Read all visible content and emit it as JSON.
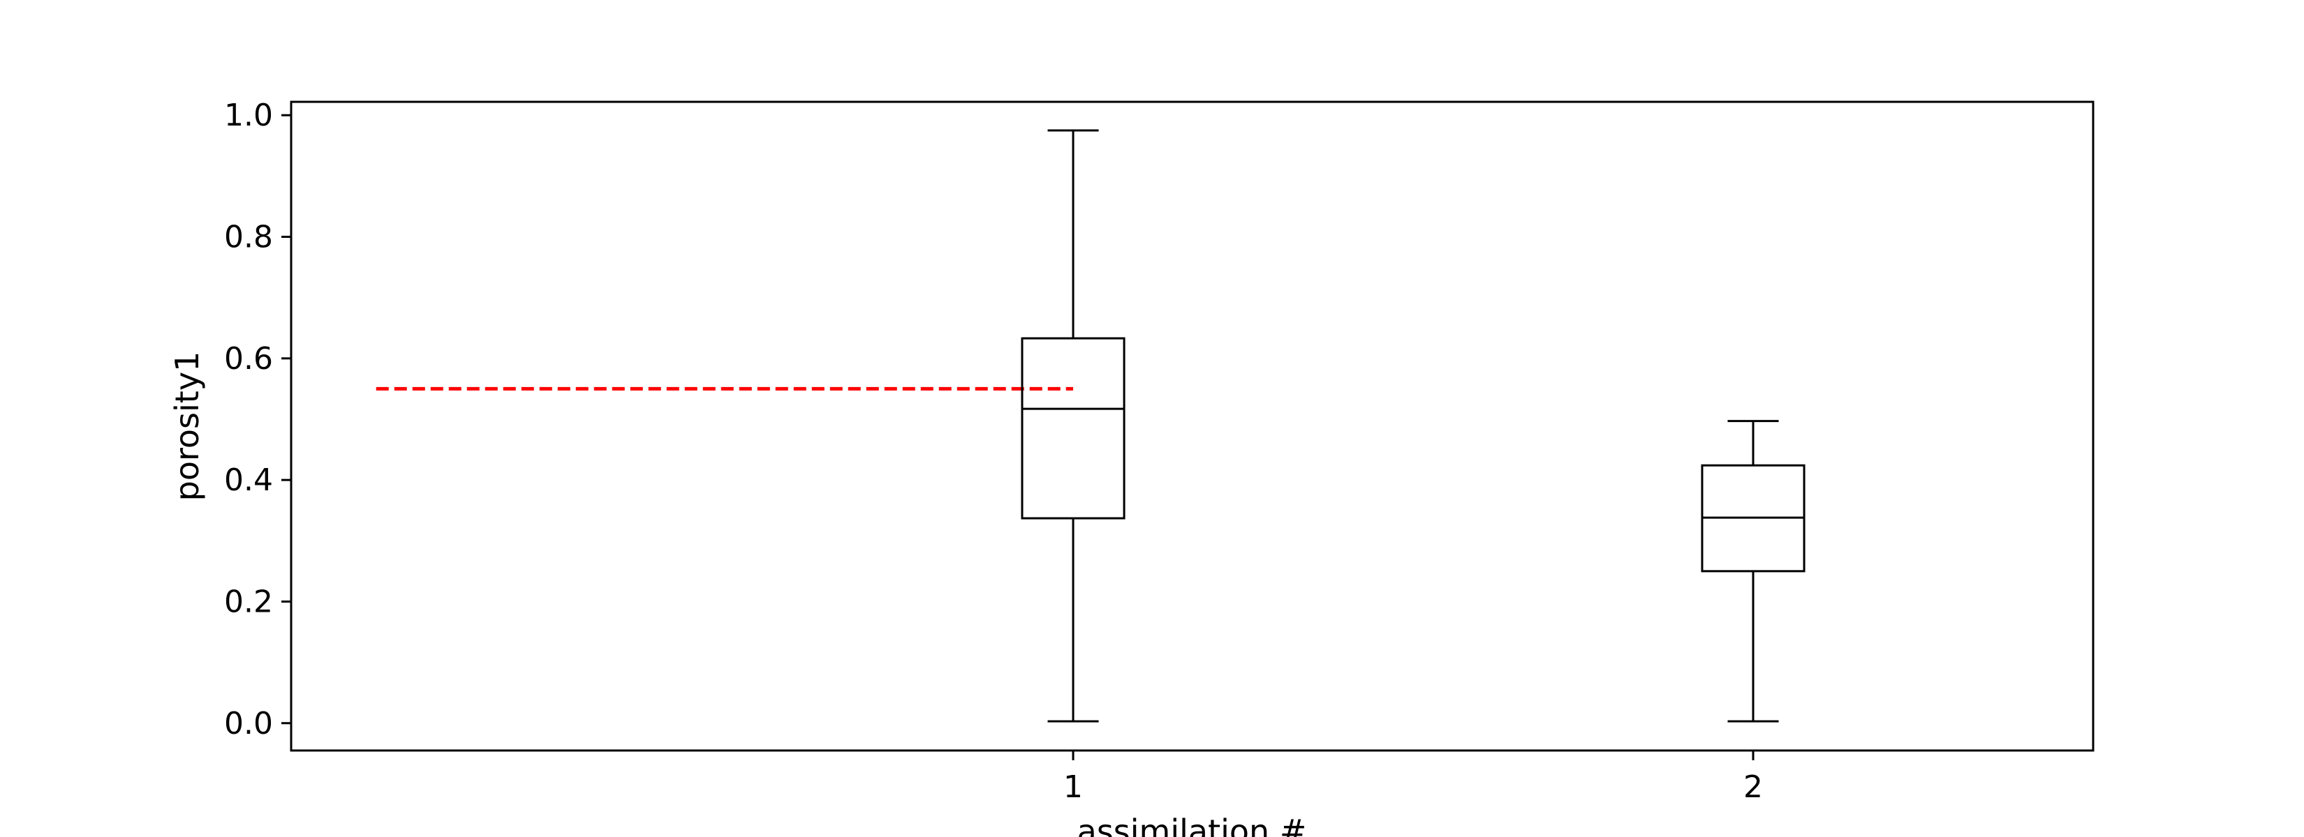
{
  "chart_data": {
    "type": "box",
    "xlabel": "assimilation #",
    "ylabel": "porosity1",
    "ylim": [
      -0.045,
      1.022
    ],
    "xlim": [
      -0.15,
      2.5
    ],
    "yticks": [
      "0.0",
      "0.2",
      "0.4",
      "0.6",
      "0.8",
      "1.0"
    ],
    "ytick_values": [
      0.0,
      0.2,
      0.4,
      0.6,
      0.8,
      1.0
    ],
    "categories": [
      "1",
      "2"
    ],
    "boxes": [
      {
        "label": "1",
        "x": 1,
        "whisker_low": 0.003,
        "q1": 0.337,
        "median": 0.517,
        "q3": 0.633,
        "whisker_high": 0.975
      },
      {
        "label": "2",
        "x": 2,
        "whisker_low": 0.003,
        "q1": 0.25,
        "median": 0.338,
        "q3": 0.424,
        "whisker_high": 0.497
      }
    ],
    "reference_line": {
      "y": 0.55,
      "x_start": -0.025,
      "x_end": 1.0,
      "color": "#ff0000",
      "style": "dashed"
    },
    "grid": false,
    "colors": {
      "box": "#000000",
      "reference": "#ff0000"
    }
  }
}
